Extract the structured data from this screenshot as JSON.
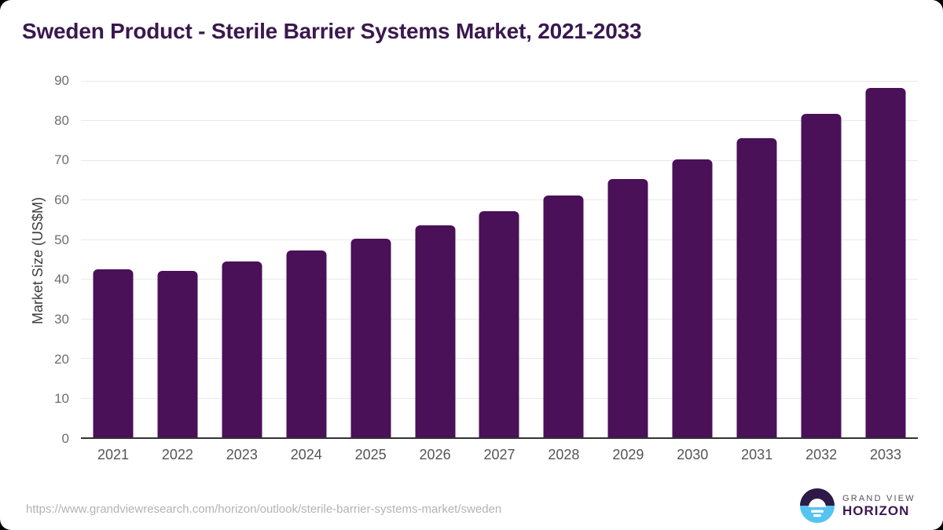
{
  "page": {
    "title": "Sweden Product - Sterile Barrier Systems Market, 2021-2033",
    "source_url": "https://www.grandviewresearch.com/horizon/outlook/sterile-barrier-systems-market/sweden"
  },
  "chart_data": {
    "type": "bar",
    "title": "Sweden Product - Sterile Barrier Systems Market, 2021-2033",
    "categories": [
      "2021",
      "2022",
      "2023",
      "2024",
      "2025",
      "2026",
      "2027",
      "2028",
      "2029",
      "2030",
      "2031",
      "2032",
      "2033"
    ],
    "values": [
      42.4,
      42.0,
      44.4,
      47.2,
      50.2,
      53.5,
      57.0,
      61.0,
      65.3,
      70.2,
      75.5,
      81.6,
      88.3
    ],
    "xlabel": "",
    "ylabel": "Market Size (US$M)",
    "ylim": [
      0,
      90
    ],
    "ytick_step": 10,
    "yticks": [
      "0",
      "10",
      "20",
      "30",
      "40",
      "50",
      "60",
      "70",
      "80",
      "90"
    ],
    "grid": true,
    "legend": "none",
    "bar_color": "#4a1058"
  },
  "colors": {
    "bar": "#4a1058",
    "title_text": "#3a184e",
    "gridline": "#e8e8e8",
    "axis_line": "#333333",
    "y_tick_text": "#6e6e6e",
    "x_tick_text": "#555555",
    "axis_title_text": "#3d3d3d",
    "url_text": "#b3b3b3",
    "logo_purple": "#2e1a47",
    "logo_blue": "#56c3f0",
    "logo_text_purple": "#3b1a52"
  },
  "logo": {
    "line1": "GRAND VIEW",
    "line2": "HORIZON"
  }
}
